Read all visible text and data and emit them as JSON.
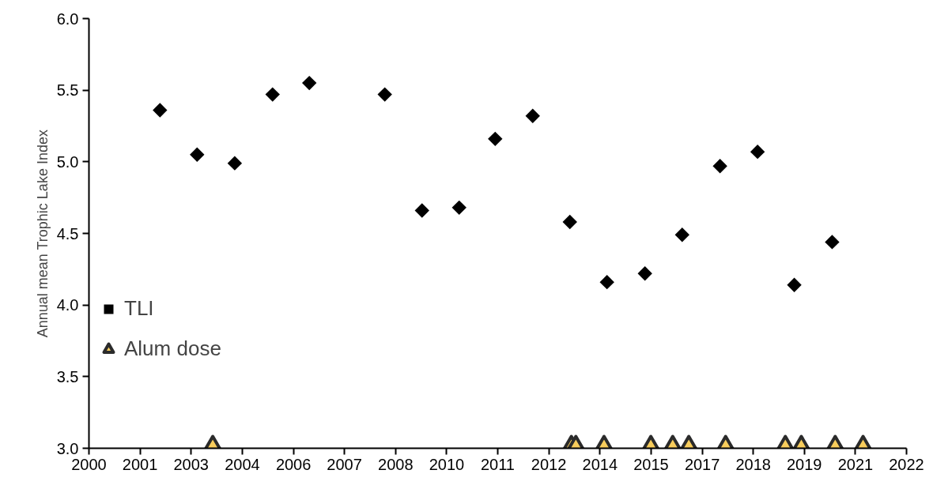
{
  "chart_data": {
    "type": "scatter",
    "ylabel": "Annual mean Trophic Lake Index",
    "xlim": [
      "2000-07-01",
      "2022-07-02"
    ],
    "xticks": [
      {
        "value": "2000-07-01",
        "label": "2000"
      },
      {
        "value": "2001-11-15",
        "label": "2001"
      },
      {
        "value": "2003-04-01",
        "label": "2003"
      },
      {
        "value": "2004-08-16",
        "label": "2004"
      },
      {
        "value": "2006-01-01",
        "label": "2006"
      },
      {
        "value": "2007-05-17",
        "label": "2007"
      },
      {
        "value": "2008-10-01",
        "label": "2008"
      },
      {
        "value": "2010-02-15",
        "label": "2010"
      },
      {
        "value": "2011-07-02",
        "label": "2011"
      },
      {
        "value": "2012-11-15",
        "label": "2012"
      },
      {
        "value": "2014-04-02",
        "label": "2014"
      },
      {
        "value": "2015-08-17",
        "label": "2015"
      },
      {
        "value": "2017-01-01",
        "label": "2017"
      },
      {
        "value": "2018-05-18",
        "label": "2018"
      },
      {
        "value": "2019-10-01",
        "label": "2019"
      },
      {
        "value": "2021-02-15",
        "label": "2021"
      },
      {
        "value": "2022-07-02",
        "label": "2022"
      }
    ],
    "ylim": [
      3.0,
      6.0
    ],
    "yticks": [
      {
        "value": 3.0,
        "label": "3.0"
      },
      {
        "value": 3.5,
        "label": "3.5"
      },
      {
        "value": 4.0,
        "label": "4.0"
      },
      {
        "value": 4.5,
        "label": "4.5"
      },
      {
        "value": 5.0,
        "label": "5.0"
      },
      {
        "value": 5.5,
        "label": "5.5"
      },
      {
        "value": 6.0,
        "label": "6.0"
      }
    ],
    "grid": false,
    "legend": "left",
    "series": [
      {
        "name": "TLI",
        "color": "#000000",
        "marker": "diamond",
        "x": [
          "2002-05-30",
          "2003-05-30",
          "2004-06-03",
          "2005-06-10",
          "2006-06-06",
          "2008-06-17",
          "2009-06-18",
          "2010-06-18",
          "2011-06-07",
          "2012-06-10",
          "2013-06-10",
          "2014-06-10",
          "2015-06-18",
          "2016-06-18",
          "2017-06-25",
          "2018-06-29",
          "2019-06-25",
          "2020-07-01"
        ],
        "values": [
          5.36,
          5.05,
          4.99,
          5.47,
          5.55,
          5.47,
          4.66,
          4.68,
          5.16,
          5.32,
          4.58,
          4.16,
          4.22,
          4.49,
          4.97,
          5.07,
          4.14,
          4.44
        ]
      },
      {
        "name": "Alum dose",
        "color": "#f8cd5c",
        "marker": "triangle",
        "x": [
          "2003-10-31",
          "2013-06-25",
          "2013-08-08",
          "2014-05-12",
          "2015-08-15",
          "2016-03-17",
          "2016-08-22",
          "2017-08-19",
          "2019-03-29",
          "2019-09-02",
          "2020-07-31",
          "2021-05-01"
        ],
        "values": [
          3.0,
          3.0,
          3.0,
          3.0,
          3.0,
          3.0,
          3.0,
          3.0,
          3.0,
          3.0,
          3.0,
          3.0
        ]
      }
    ]
  }
}
